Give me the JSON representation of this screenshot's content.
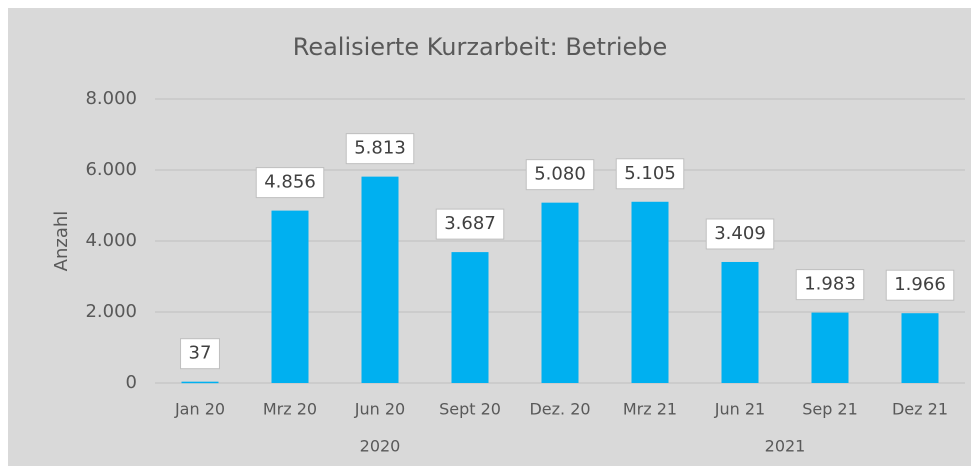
{
  "chart_data": {
    "type": "bar",
    "title": "Realisierte Kurzarbeit: Betriebe",
    "y_label": "Anzahl",
    "groups": [
      {
        "name": "2020",
        "categories": [
          "Jan 20",
          "Mrz 20",
          "Jun 20",
          "Sept 20",
          "Dez. 20"
        ],
        "values": [
          37,
          4856,
          5813,
          3687,
          5080
        ],
        "value_labels": [
          "37",
          "4.856",
          "5.813",
          "3.687",
          "5.080"
        ]
      },
      {
        "name": "2021",
        "categories": [
          "Mrz 21",
          "Jun 21",
          "Sep 21",
          "Dez 21"
        ],
        "values": [
          5105,
          3409,
          1983,
          1966
        ],
        "value_labels": [
          "5.105",
          "3.409",
          "1.983",
          "1.966"
        ]
      }
    ],
    "color": "#00b0f0",
    "ylim": [
      0,
      8000
    ],
    "yticks": [
      0,
      {
        "value": 2000,
        "label": "2.000"
      },
      {
        "value": 4000,
        "label": "4.000"
      },
      {
        "value": 6000,
        "label": "6.000"
      },
      {
        "value": 8000,
        "label": "8.000"
      }
    ],
    "grid": true
  }
}
